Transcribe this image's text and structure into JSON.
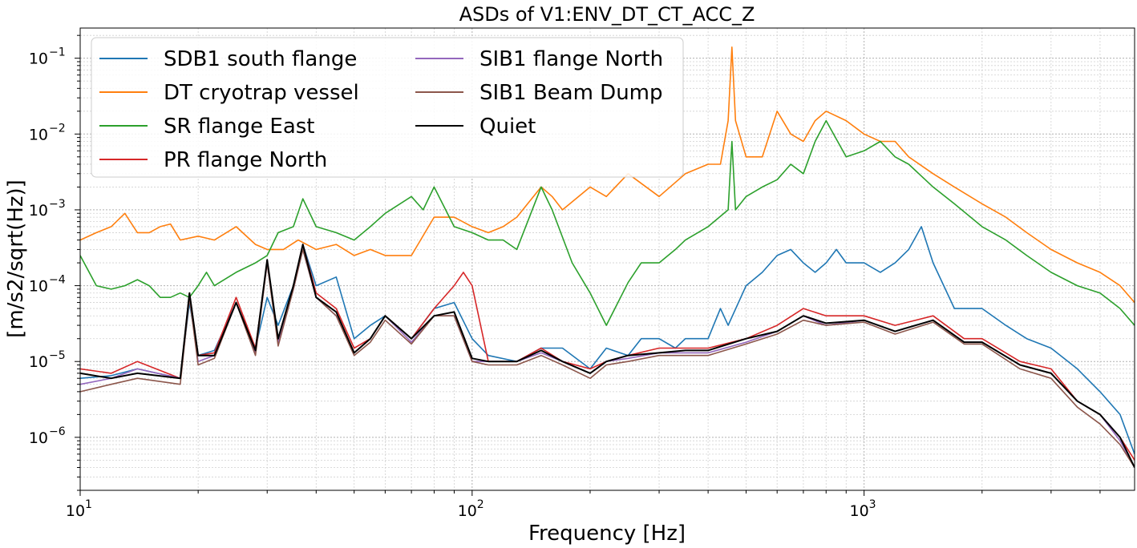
{
  "chart_data": {
    "type": "line",
    "title": "ASDs of V1:ENV_DT_CT_ACC_Z",
    "xlabel": "Frequency [Hz]",
    "ylabel": "[m/s2/sqrt(Hz)]",
    "xscale": "log",
    "yscale": "log",
    "xlim": [
      10,
      4900
    ],
    "ylim": [
      2e-07,
      0.25
    ],
    "grid": "major and minor, dotted",
    "legend": {
      "placement": "top-left",
      "columns": 2
    },
    "x_ticks": [
      {
        "value": 10,
        "base": "10",
        "exp": "1"
      },
      {
        "value": 100,
        "base": "10",
        "exp": "2"
      },
      {
        "value": 1000,
        "base": "10",
        "exp": "3"
      }
    ],
    "y_ticks": [
      {
        "value": 1e-06,
        "base": "10",
        "exp": "−6"
      },
      {
        "value": 1e-05,
        "base": "10",
        "exp": "−5"
      },
      {
        "value": 0.0001,
        "base": "10",
        "exp": "−4"
      },
      {
        "value": 0.001,
        "base": "10",
        "exp": "−3"
      },
      {
        "value": 0.01,
        "base": "10",
        "exp": "−2"
      },
      {
        "value": 0.1,
        "base": "10",
        "exp": "−1"
      }
    ],
    "series": [
      {
        "name": "SDB1 south flange",
        "color": "#1f77b4",
        "x": [
          10,
          12,
          14,
          18,
          19,
          20,
          22,
          25,
          28,
          30,
          32,
          35,
          37,
          40,
          45,
          50,
          55,
          60,
          70,
          80,
          90,
          100,
          110,
          130,
          150,
          170,
          200,
          220,
          250,
          270,
          300,
          330,
          350,
          400,
          430,
          450,
          500,
          550,
          600,
          650,
          700,
          750,
          800,
          850,
          900,
          950,
          1000,
          1100,
          1200,
          1300,
          1400,
          1500,
          1700,
          2000,
          2300,
          2600,
          3000,
          3500,
          4000,
          4500,
          4900
        ],
        "y": [
          6e-06,
          6.5e-06,
          8e-06,
          6e-06,
          6e-05,
          1.2e-05,
          1.4e-05,
          6e-05,
          1.5e-05,
          7e-05,
          3e-05,
          0.0001,
          0.00035,
          0.0001,
          0.00013,
          2e-05,
          3e-05,
          4e-05,
          2e-05,
          5e-05,
          6e-05,
          2e-05,
          1.2e-05,
          1e-05,
          1.5e-05,
          1.5e-05,
          8e-06,
          1.5e-05,
          1.2e-05,
          2e-05,
          2e-05,
          1.5e-05,
          2e-05,
          2e-05,
          5e-05,
          3e-05,
          0.0001,
          0.00015,
          0.00025,
          0.0003,
          0.0002,
          0.00015,
          0.0002,
          0.0003,
          0.0002,
          0.0002,
          0.0002,
          0.00015,
          0.0002,
          0.0003,
          0.0006,
          0.0002,
          5e-05,
          5e-05,
          3e-05,
          2e-05,
          1.5e-05,
          8e-06,
          4e-06,
          2e-06,
          6e-07
        ]
      },
      {
        "name": "DT cryotrap vessel",
        "color": "#ff7f0e",
        "x": [
          10,
          11,
          12,
          13,
          14,
          15,
          16,
          17,
          18,
          20,
          22,
          25,
          28,
          30,
          33,
          36,
          40,
          45,
          50,
          55,
          60,
          70,
          80,
          90,
          100,
          110,
          120,
          130,
          150,
          160,
          170,
          200,
          220,
          250,
          300,
          350,
          400,
          430,
          450,
          460,
          470,
          500,
          550,
          600,
          650,
          700,
          750,
          800,
          900,
          1000,
          1100,
          1200,
          1300,
          1500,
          1700,
          2000,
          2300,
          2600,
          3000,
          3500,
          4000,
          4500,
          4900
        ],
        "y": [
          0.0004,
          0.0005,
          0.0006,
          0.0009,
          0.0005,
          0.0005,
          0.0006,
          0.00065,
          0.0004,
          0.00045,
          0.0004,
          0.0006,
          0.00035,
          0.0003,
          0.0003,
          0.0004,
          0.0003,
          0.00035,
          0.00025,
          0.0003,
          0.00025,
          0.00025,
          0.0008,
          0.0008,
          0.0006,
          0.0005,
          0.0006,
          0.0008,
          0.002,
          0.0015,
          0.001,
          0.002,
          0.0015,
          0.003,
          0.0015,
          0.003,
          0.004,
          0.004,
          0.015,
          0.14,
          0.015,
          0.005,
          0.005,
          0.02,
          0.01,
          0.008,
          0.015,
          0.02,
          0.015,
          0.01,
          0.008,
          0.008,
          0.005,
          0.003,
          0.002,
          0.0012,
          0.0008,
          0.0005,
          0.0003,
          0.0002,
          0.00015,
          0.0001,
          6e-05
        ]
      },
      {
        "name": "SR flange East",
        "color": "#2ca02c",
        "x": [
          10,
          11,
          12,
          13,
          14,
          15,
          16,
          17,
          18,
          19,
          20,
          21,
          22,
          25,
          28,
          30,
          32,
          35,
          37,
          40,
          45,
          50,
          55,
          60,
          70,
          75,
          80,
          90,
          100,
          110,
          120,
          130,
          150,
          160,
          180,
          200,
          220,
          250,
          270,
          300,
          330,
          350,
          400,
          450,
          460,
          470,
          500,
          550,
          600,
          650,
          700,
          750,
          800,
          900,
          1000,
          1100,
          1200,
          1300,
          1500,
          1700,
          2000,
          2300,
          2600,
          3000,
          3500,
          4000,
          4500,
          4900
        ],
        "y": [
          0.00025,
          0.0001,
          9e-05,
          0.0001,
          0.00012,
          0.0001,
          7e-05,
          7e-05,
          8e-05,
          7e-05,
          0.0001,
          0.00015,
          0.0001,
          0.00015,
          0.0002,
          0.00025,
          0.0005,
          0.0006,
          0.0014,
          0.0006,
          0.0005,
          0.0004,
          0.0006,
          0.0009,
          0.0015,
          0.001,
          0.002,
          0.0006,
          0.0005,
          0.0004,
          0.0004,
          0.0003,
          0.002,
          0.001,
          0.0002,
          8e-05,
          3e-05,
          0.00011,
          0.0002,
          0.0002,
          0.0003,
          0.0004,
          0.0006,
          0.001,
          0.008,
          0.001,
          0.0015,
          0.002,
          0.0025,
          0.004,
          0.003,
          0.008,
          0.015,
          0.005,
          0.006,
          0.008,
          0.005,
          0.004,
          0.002,
          0.0012,
          0.0006,
          0.0004,
          0.00025,
          0.00015,
          0.0001,
          8e-05,
          5e-05,
          3e-05
        ]
      },
      {
        "name": "PR flange North",
        "color": "#d62728",
        "x": [
          10,
          12,
          14,
          18,
          19,
          20,
          22,
          25,
          28,
          30,
          32,
          35,
          37,
          40,
          45,
          50,
          55,
          60,
          70,
          80,
          90,
          95,
          100,
          110,
          130,
          150,
          170,
          200,
          220,
          250,
          300,
          350,
          400,
          500,
          600,
          700,
          800,
          1000,
          1200,
          1500,
          1800,
          2000,
          2500,
          3000,
          3500,
          4000,
          4500,
          4900
        ],
        "y": [
          8e-06,
          7e-06,
          1e-05,
          6e-06,
          8e-05,
          1.2e-05,
          1.3e-05,
          7e-05,
          1.5e-05,
          0.0002,
          2e-05,
          0.0001,
          0.00035,
          8e-05,
          5e-05,
          1.5e-05,
          2e-05,
          4e-05,
          2e-05,
          5e-05,
          0.0001,
          0.00015,
          0.0001,
          1e-05,
          1e-05,
          1.5e-05,
          1e-05,
          8e-06,
          1e-05,
          1.2e-05,
          1.5e-05,
          1.5e-05,
          1.5e-05,
          2e-05,
          3e-05,
          5e-05,
          4e-05,
          4e-05,
          3e-05,
          4e-05,
          2e-05,
          2e-05,
          1e-05,
          8e-06,
          3e-06,
          2e-06,
          1e-06,
          5e-07
        ]
      },
      {
        "name": "SIB1 flange North",
        "color": "#9467bd",
        "x": [
          10,
          12,
          14,
          18,
          19,
          20,
          22,
          25,
          28,
          30,
          32,
          35,
          37,
          40,
          45,
          50,
          55,
          60,
          70,
          80,
          90,
          100,
          110,
          130,
          150,
          170,
          200,
          220,
          250,
          300,
          350,
          400,
          500,
          600,
          700,
          800,
          1000,
          1200,
          1500,
          1800,
          2000,
          2500,
          3000,
          3500,
          4000,
          4500,
          4900
        ],
        "y": [
          5e-06,
          6e-06,
          8e-06,
          6e-06,
          7e-05,
          1e-05,
          1.2e-05,
          6e-05,
          1.3e-05,
          0.0002,
          1.8e-05,
          9e-05,
          0.0003,
          7e-05,
          4e-05,
          1.3e-05,
          2e-05,
          4e-05,
          1.8e-05,
          4e-05,
          4e-05,
          1e-05,
          1e-05,
          1e-05,
          1.3e-05,
          1e-05,
          7e-06,
          1e-05,
          1.1e-05,
          1.3e-05,
          1.3e-05,
          1.3e-05,
          1.8e-05,
          2.5e-05,
          4e-05,
          3e-05,
          3.5e-05,
          2.5e-05,
          3.5e-05,
          1.8e-05,
          1.8e-05,
          9e-06,
          7e-06,
          3e-06,
          2e-06,
          9e-07,
          4e-07
        ]
      },
      {
        "name": "SIB1 Beam Dump",
        "color": "#8c564b",
        "x": [
          10,
          12,
          14,
          18,
          19,
          20,
          22,
          25,
          28,
          30,
          32,
          35,
          37,
          40,
          45,
          50,
          55,
          60,
          70,
          80,
          90,
          100,
          110,
          130,
          150,
          170,
          200,
          220,
          250,
          300,
          350,
          400,
          500,
          600,
          700,
          800,
          1000,
          1200,
          1500,
          1800,
          2000,
          2500,
          3000,
          3500,
          4000,
          4500,
          4900
        ],
        "y": [
          4e-06,
          5e-06,
          6e-06,
          5e-06,
          7e-05,
          9e-06,
          1.1e-05,
          6e-05,
          1.2e-05,
          0.0002,
          1.6e-05,
          9e-05,
          0.0003,
          7e-05,
          4e-05,
          1.2e-05,
          1.8e-05,
          3.5e-05,
          1.7e-05,
          4e-05,
          4e-05,
          1e-05,
          9e-06,
          9e-06,
          1.2e-05,
          9e-06,
          6e-06,
          9e-06,
          1e-05,
          1.2e-05,
          1.2e-05,
          1.2e-05,
          1.7e-05,
          2.3e-05,
          3.5e-05,
          3e-05,
          3.3e-05,
          2.3e-05,
          3.3e-05,
          1.7e-05,
          1.7e-05,
          8e-06,
          6e-06,
          2.5e-06,
          1.5e-06,
          8e-07,
          4e-07
        ]
      },
      {
        "name": "Quiet",
        "color": "#000000",
        "x": [
          10,
          12,
          14,
          18,
          19,
          20,
          22,
          25,
          28,
          30,
          32,
          35,
          37,
          40,
          45,
          50,
          55,
          60,
          70,
          80,
          90,
          100,
          110,
          130,
          150,
          170,
          200,
          220,
          250,
          300,
          350,
          400,
          500,
          600,
          700,
          800,
          1000,
          1200,
          1500,
          1800,
          2000,
          2500,
          3000,
          3500,
          4000,
          4500,
          4900
        ],
        "y": [
          7e-06,
          6e-06,
          7e-06,
          6e-06,
          8e-05,
          1.2e-05,
          1.2e-05,
          6e-05,
          1.4e-05,
          0.00022,
          2e-05,
          0.0001,
          0.00035,
          7e-05,
          4.5e-05,
          1.3e-05,
          2e-05,
          4e-05,
          2e-05,
          4e-05,
          4.5e-05,
          1.1e-05,
          1e-05,
          1e-05,
          1.4e-05,
          1e-05,
          7e-06,
          1e-05,
          1.2e-05,
          1.3e-05,
          1.4e-05,
          1.4e-05,
          2e-05,
          2.5e-05,
          4e-05,
          3.2e-05,
          3.5e-05,
          2.5e-05,
          3.5e-05,
          1.8e-05,
          1.8e-05,
          9e-06,
          7e-06,
          3e-06,
          2e-06,
          1e-06,
          4e-07
        ]
      }
    ]
  }
}
